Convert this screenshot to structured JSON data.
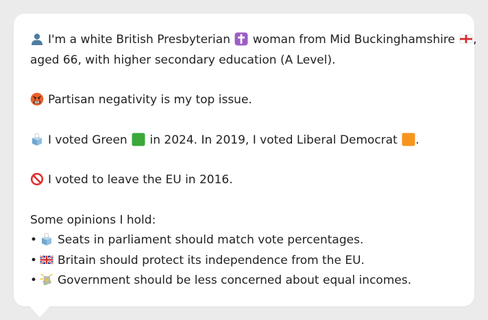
{
  "profile": {
    "intro_a": "I'm a white British Presbyterian",
    "intro_b": "woman from Mid Buckinghamshire",
    "intro_c": ",",
    "intro_d": "aged 66, with higher secondary education (A Level).",
    "icon": "person-icon"
  },
  "issue": {
    "text": "Partisan negativity is my top issue.",
    "icon": "angry-face-icon"
  },
  "votes": {
    "a": "I voted Green",
    "b": "in 2024. In 2019, I voted Liberal Democrat",
    "c": ".",
    "icon": "ballot-box-icon",
    "green_color": "#3aa83a",
    "libdem_color": "#f7941d"
  },
  "eu": {
    "text": "I voted to leave the EU in 2016.",
    "icon": "prohibited-icon"
  },
  "opinions": {
    "heading": "Some opinions I hold:",
    "bullet": "•",
    "items": [
      {
        "icon": "ballot-box-icon",
        "text": "Seats in parliament should match vote percentages."
      },
      {
        "icon": "uk-flag-icon",
        "text": "Britain should protect its independence from the EU."
      },
      {
        "icon": "money-icon",
        "text": "Government should be less concerned about equal incomes."
      }
    ]
  }
}
